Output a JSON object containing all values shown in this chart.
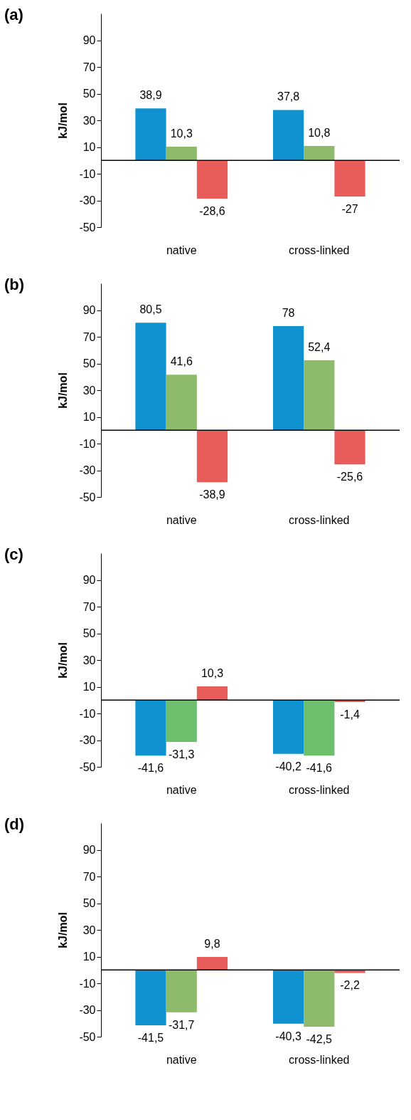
{
  "chart_data": [
    {
      "type": "bar",
      "title": "(a)",
      "ylabel": "kJ/mol",
      "categories": [
        "native",
        "cross-linked"
      ],
      "ylim": [
        -50,
        110
      ],
      "yticks": [
        -50,
        -30,
        -10,
        10,
        30,
        50,
        70,
        90
      ],
      "grid": false,
      "series": [
        {
          "color": "#1192d0",
          "values": [
            38.9,
            37.8
          ],
          "value_labels": [
            "38,9",
            "37,8"
          ]
        },
        {
          "color": "#8dbb6b",
          "values": [
            10.3,
            10.8
          ],
          "value_labels": [
            "10,3",
            "10,8"
          ]
        },
        {
          "color": "#e85c5a",
          "values": [
            -28.6,
            -27
          ],
          "value_labels": [
            "-28,6",
            "-27"
          ]
        }
      ]
    },
    {
      "type": "bar",
      "title": "(b)",
      "ylabel": "kJ/mol",
      "categories": [
        "native",
        "cross-linked"
      ],
      "ylim": [
        -50,
        110
      ],
      "yticks": [
        -50,
        -30,
        -10,
        10,
        30,
        50,
        70,
        90
      ],
      "grid": false,
      "series": [
        {
          "color": "#1192d0",
          "values": [
            80.5,
            78
          ],
          "value_labels": [
            "80,5",
            "78"
          ]
        },
        {
          "color": "#8dbb6b",
          "values": [
            41.6,
            52.4
          ],
          "value_labels": [
            "41,6",
            "52,4"
          ]
        },
        {
          "color": "#e85c5a",
          "values": [
            -38.9,
            -25.6
          ],
          "value_labels": [
            "-38,9",
            "-25,6"
          ]
        }
      ]
    },
    {
      "type": "bar",
      "title": "(c)",
      "ylabel": "kJ/mol",
      "categories": [
        "native",
        "cross-linked"
      ],
      "ylim": [
        -50,
        110
      ],
      "yticks": [
        -50,
        -30,
        -10,
        10,
        30,
        50,
        70,
        90
      ],
      "grid": false,
      "series": [
        {
          "color": "#1192d0",
          "values": [
            -41.6,
            -40.2
          ],
          "value_labels": [
            "-41,6",
            "-40,2"
          ]
        },
        {
          "color": "#6dbf6e",
          "values": [
            -31.3,
            -41.6
          ],
          "value_labels": [
            "-31,3",
            "-41,6"
          ]
        },
        {
          "color": "#e85c5a",
          "values": [
            10.3,
            -1.4
          ],
          "value_labels": [
            "10,3",
            "-1,4"
          ]
        }
      ]
    },
    {
      "type": "bar",
      "title": "(d)",
      "ylabel": "kJ/mol",
      "categories": [
        "native",
        "cross-linked"
      ],
      "ylim": [
        -50,
        110
      ],
      "yticks": [
        -50,
        -30,
        -10,
        10,
        30,
        50,
        70,
        90
      ],
      "grid": false,
      "series": [
        {
          "color": "#1192d0",
          "values": [
            -41.5,
            -40.3
          ],
          "value_labels": [
            "-41,5",
            "-40,3"
          ]
        },
        {
          "color": "#8dbb6b",
          "values": [
            -31.7,
            -42.5
          ],
          "value_labels": [
            "-31,7",
            "-42,5"
          ]
        },
        {
          "color": "#e85c5a",
          "values": [
            9.8,
            -2.2
          ],
          "value_labels": [
            "9,8",
            "-2,2"
          ]
        }
      ]
    }
  ]
}
